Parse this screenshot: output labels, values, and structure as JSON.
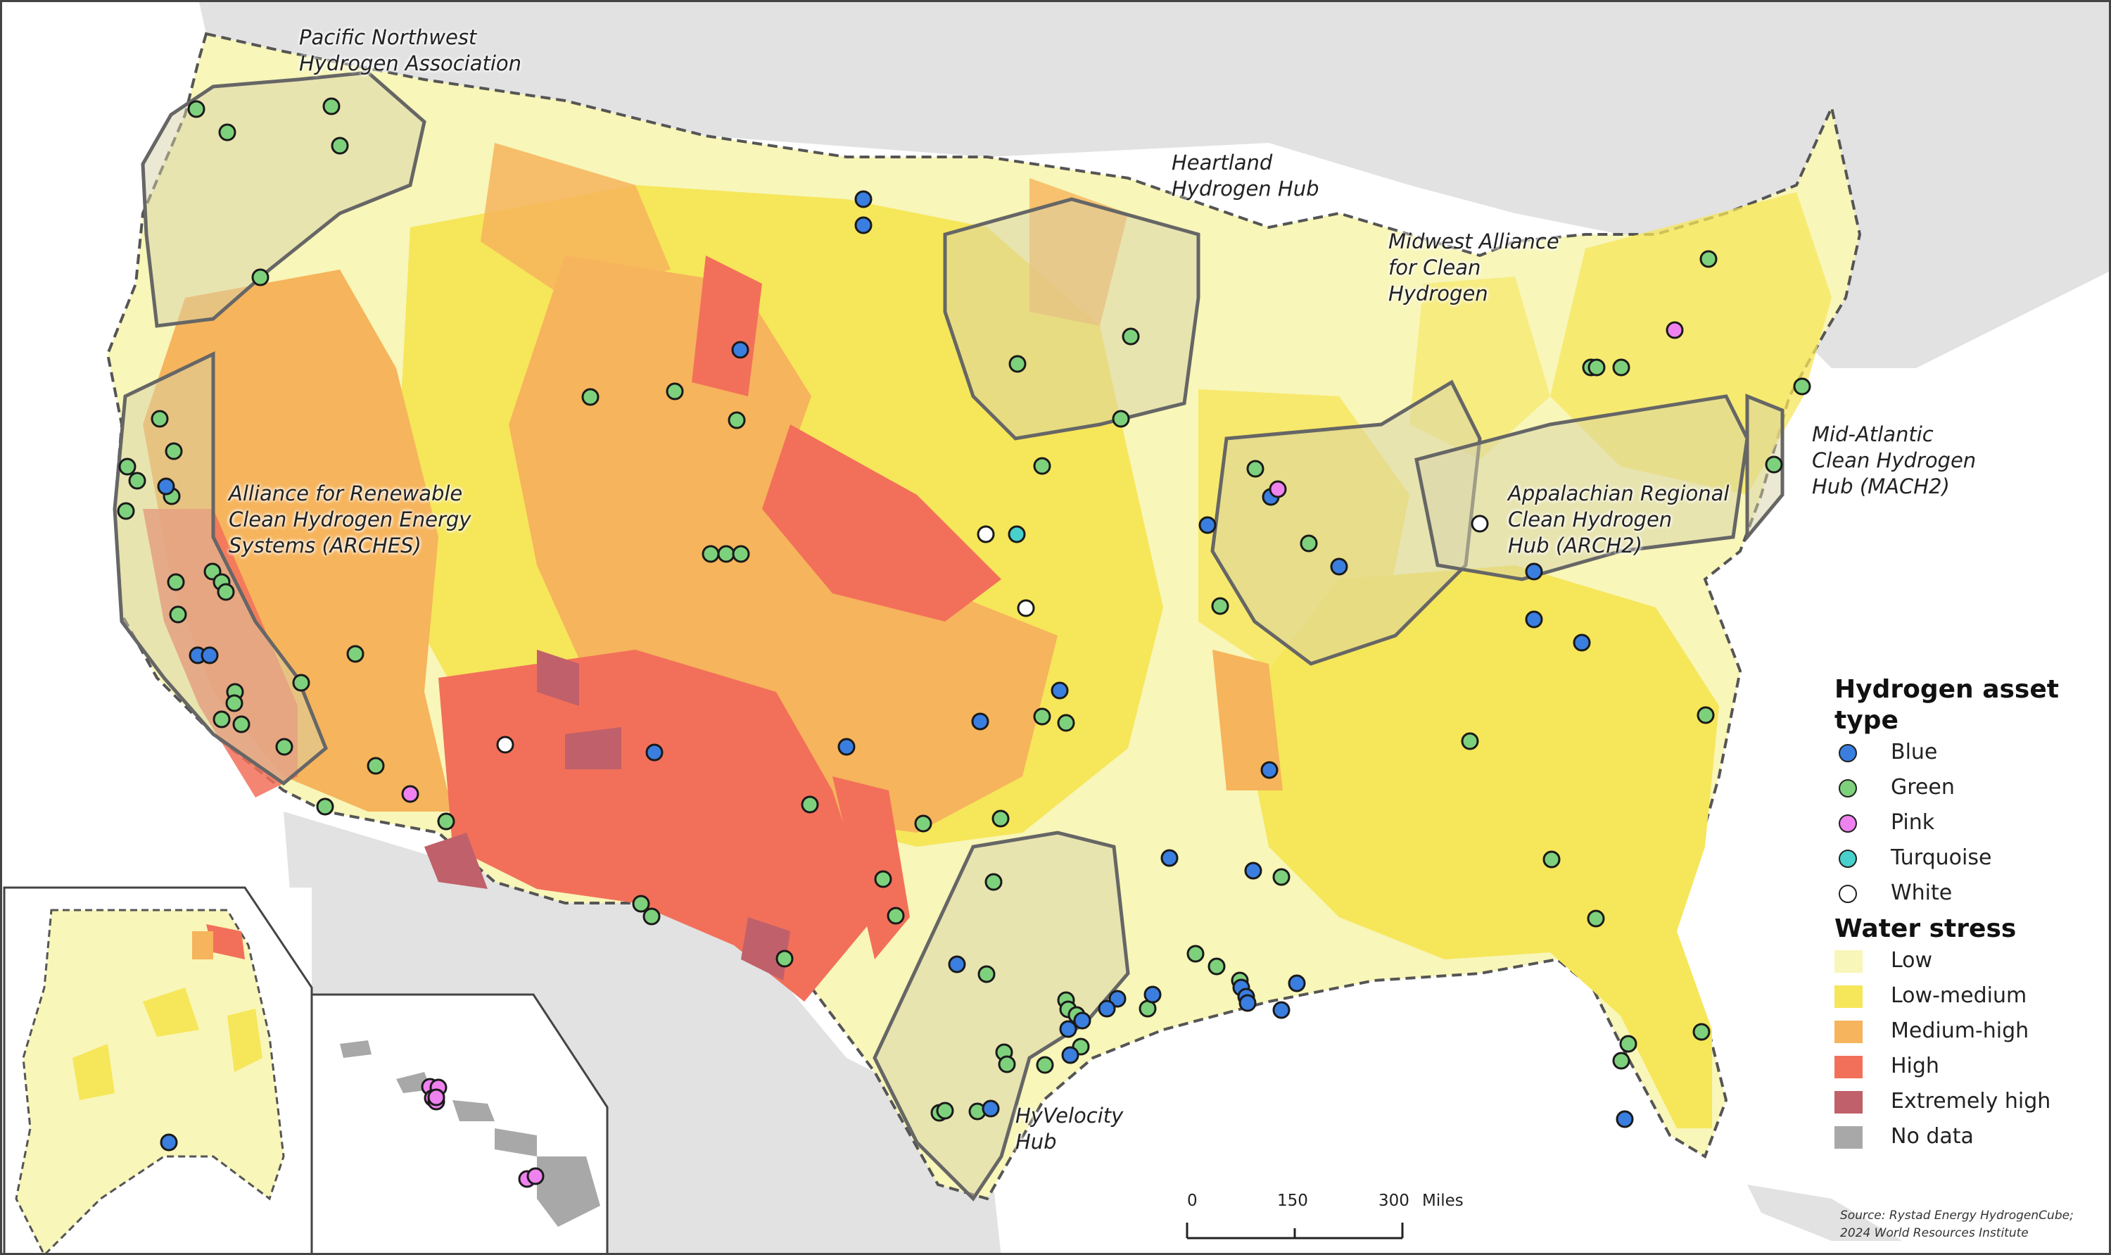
{
  "hubs": {
    "pnwh2": "Pacific Northwest\nHydrogen Association",
    "heartland": "Heartland\nHydrogen Hub",
    "mach2_midwest": "Midwest Alliance\nfor Clean\nHydrogen",
    "arches": "Alliance for Renewable\nClean Hydrogen Energy\nSystems (ARCHES)",
    "arch2": "Appalachian Regional\nClean Hydrogen\nHub (ARCH2)",
    "mach2": "Mid-Atlantic\nClean Hydrogen\nHub (MACH2)",
    "hyvelocity": "HyVelocity\nHub"
  },
  "legend": {
    "asset_title": "Hydrogen asset type",
    "asset_types": [
      {
        "label": "Blue",
        "color": "#3a7ee0"
      },
      {
        "label": "Green",
        "color": "#7ed17c"
      },
      {
        "label": "Pink",
        "color": "#ee82ee"
      },
      {
        "label": "Turquoise",
        "color": "#48d1cc"
      },
      {
        "label": "White",
        "color": "#ffffff"
      }
    ],
    "stress_title": "Water stress",
    "stress_levels": [
      {
        "label": "Low",
        "color": "#f8f6b8"
      },
      {
        "label": "Low-medium",
        "color": "#f6e65a"
      },
      {
        "label": "Medium-high",
        "color": "#f6b45c"
      },
      {
        "label": "High",
        "color": "#f2705a"
      },
      {
        "label": "Extremely high",
        "color": "#c0606a"
      },
      {
        "label": "No data",
        "color": "#a8a8a8"
      }
    ]
  },
  "scale": {
    "t0": "0",
    "t1": "150",
    "t2": "300",
    "unit": "Miles"
  },
  "source": "Source: Rystad Energy HydrogenCube;\n2024 World Resources Institute"
}
